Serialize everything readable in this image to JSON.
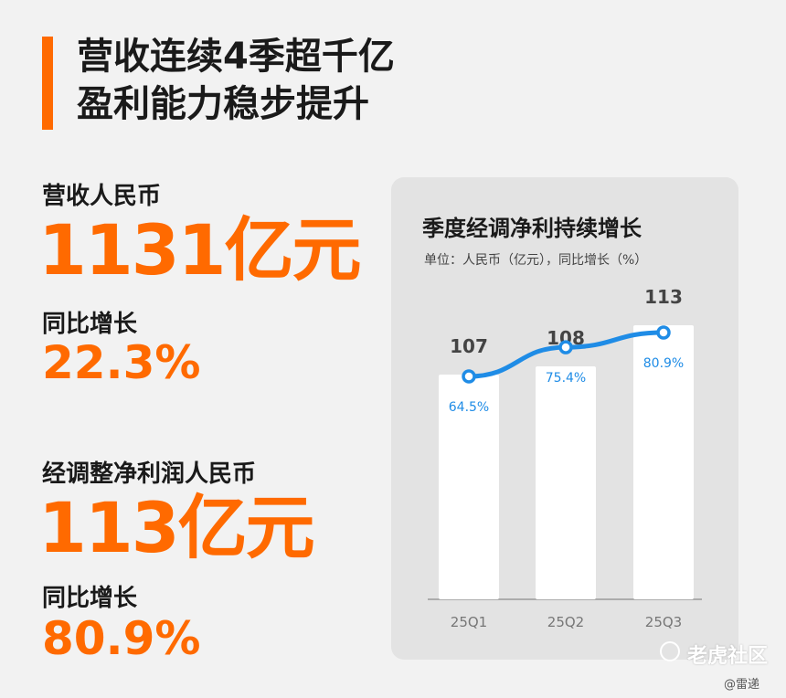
{
  "headline": {
    "line1": "营收连续4季超千亿",
    "line2": "盈利能力稳步提升"
  },
  "revenue": {
    "label": "营收人民币",
    "value": "1131亿元",
    "growth_label": "同比增长",
    "growth_value": "22.3%"
  },
  "profit": {
    "label": "经调整净利润人民币",
    "value": "113亿元",
    "growth_label": "同比增长",
    "growth_value": "80.9%"
  },
  "colors": {
    "accent": "#ff6a00",
    "line": "#1f8ce6",
    "bar": "#ffffff",
    "panel": "#e3e3e3"
  },
  "chart_data": {
    "type": "bar",
    "title": "季度经调净利持续增长",
    "subtitle": "单位：人民币（亿元），同比增长（%）",
    "categories": [
      "25Q1",
      "25Q2",
      "25Q3"
    ],
    "series": [
      {
        "type": "bar",
        "values": [
          107,
          108,
          113
        ]
      },
      {
        "type": "line",
        "values": [
          64.5,
          75.4,
          80.9
        ]
      }
    ],
    "bar_labels": [
      "107",
      "108",
      "113"
    ],
    "line_labels": [
      "64.5%",
      "75.4%",
      "80.9%"
    ],
    "grid": false
  },
  "watermark": {
    "icon": "tiger-community-icon",
    "text": "老虎社区",
    "credit": "@雷递"
  }
}
